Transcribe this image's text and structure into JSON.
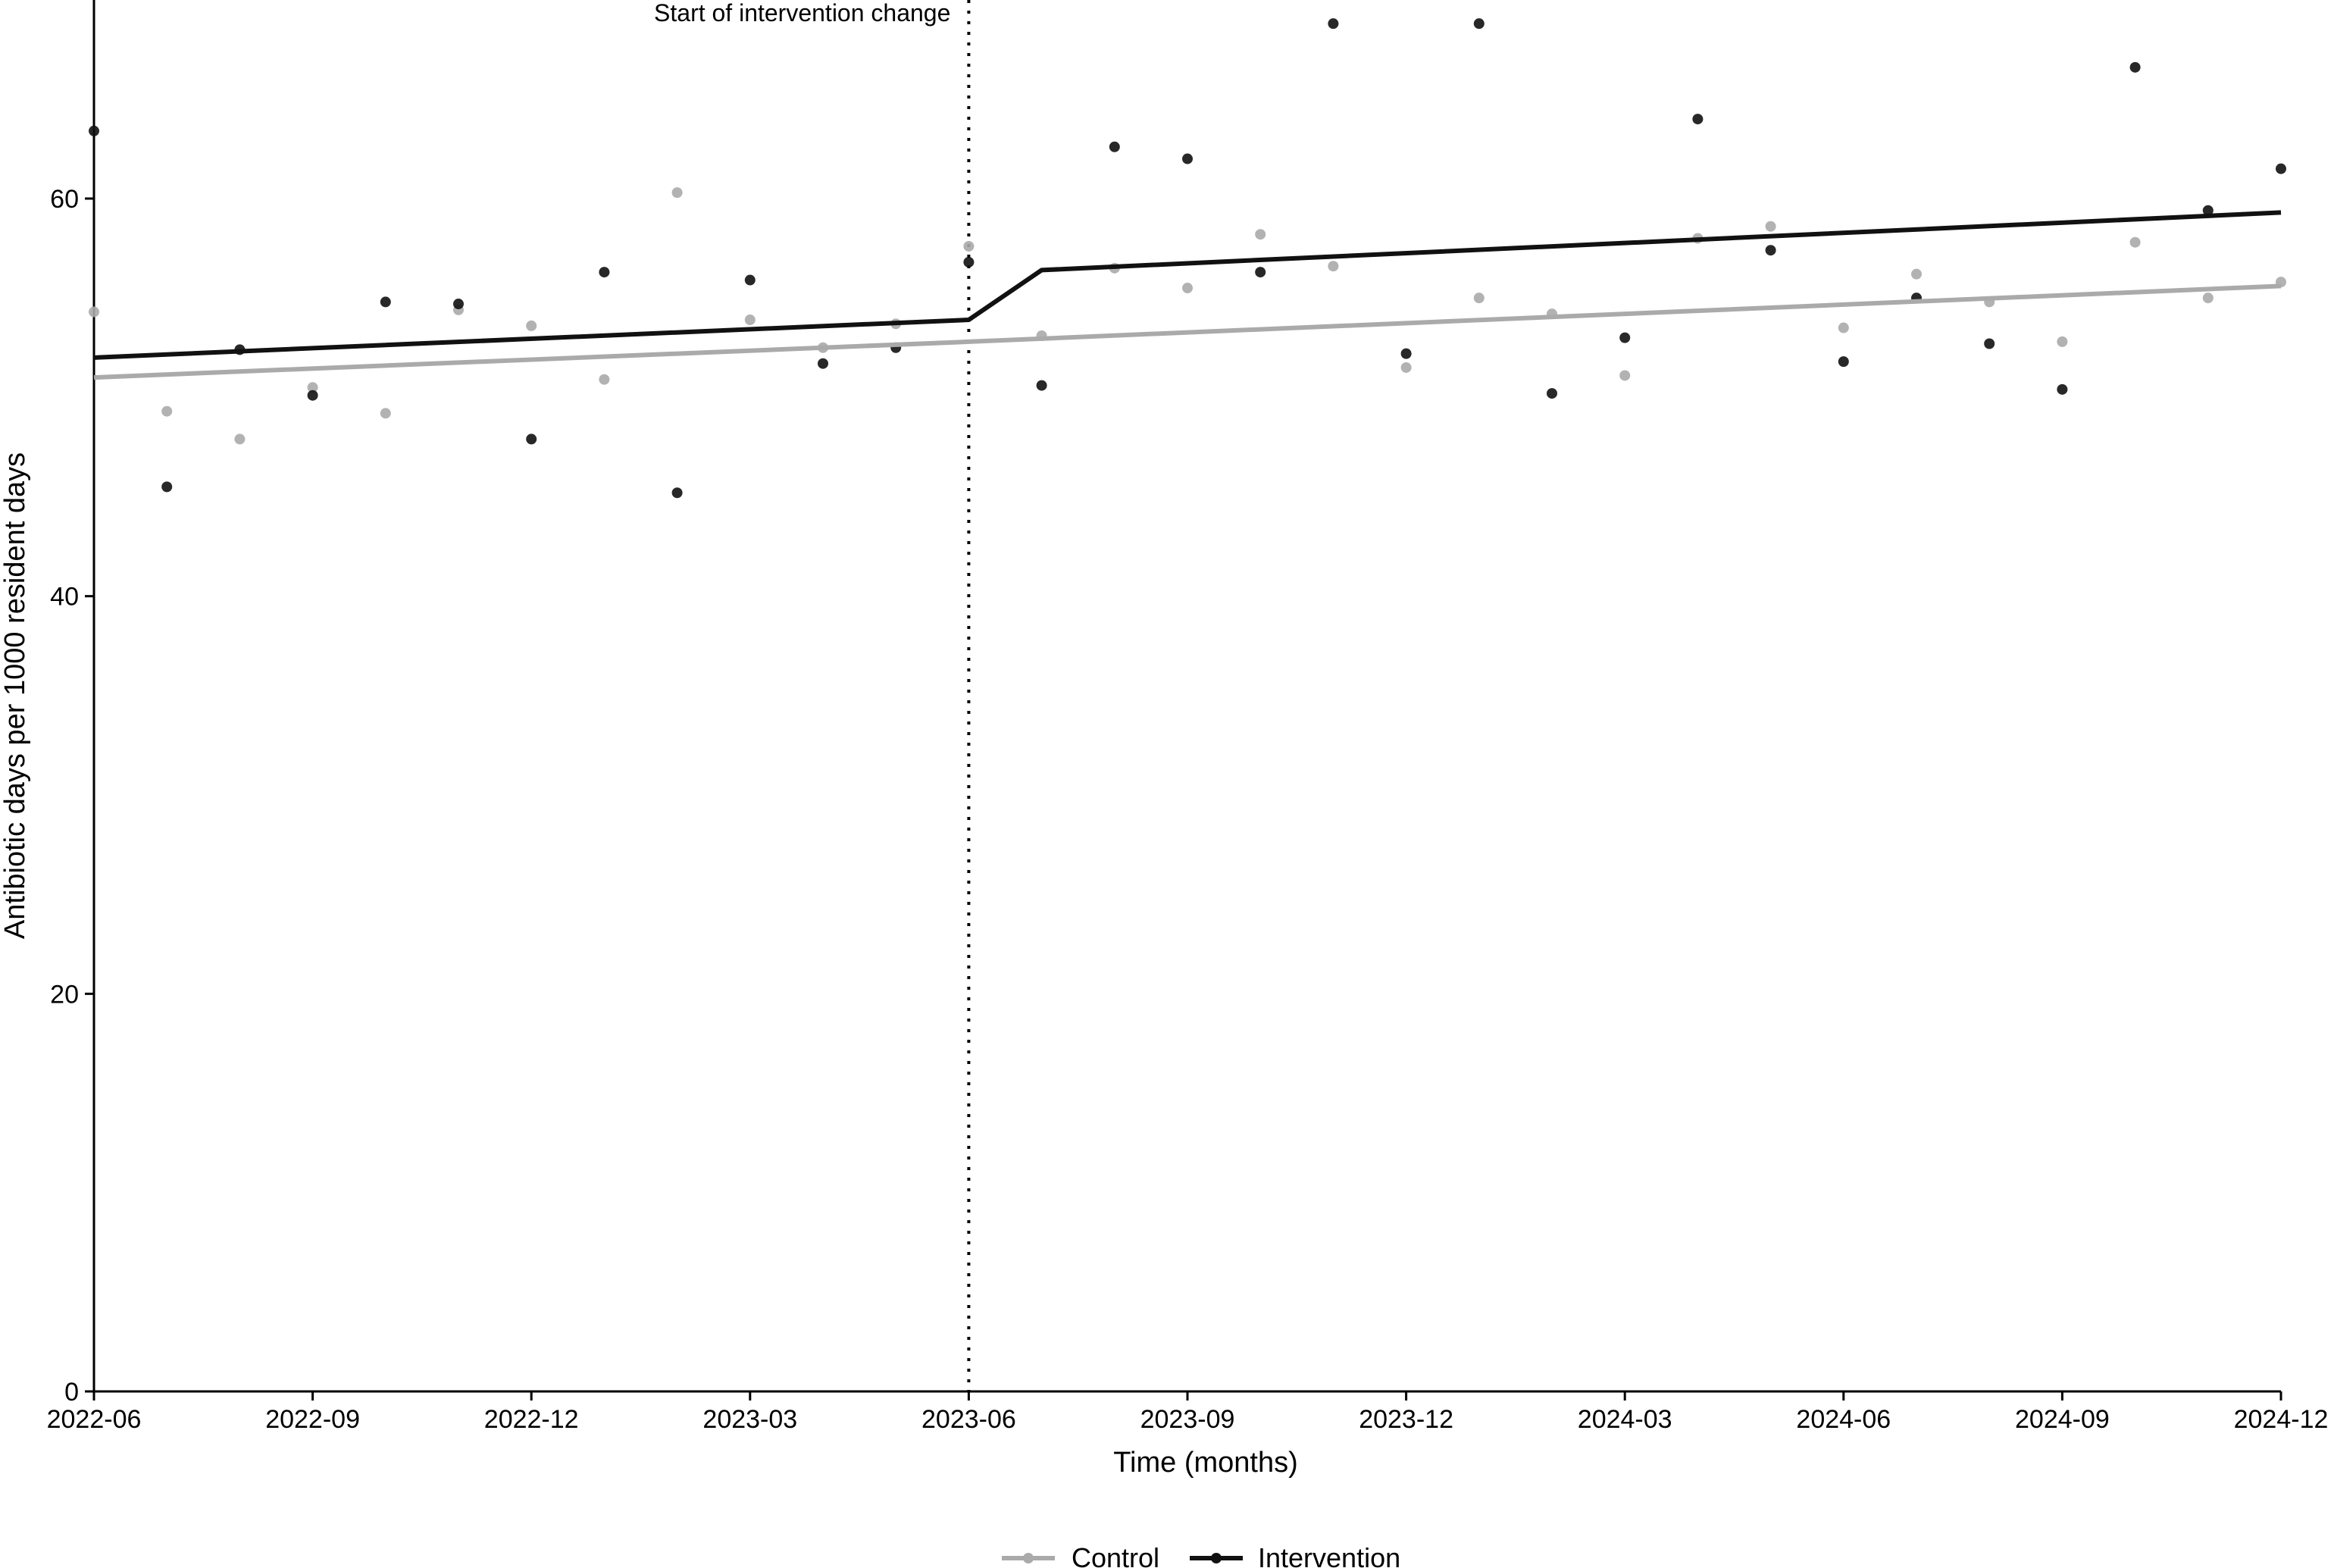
{
  "chart_data": {
    "type": "scatter",
    "title": "",
    "xlabel": "Time (months)",
    "ylabel": "Antibiotic days per 1000 resident days",
    "ylim": [
      0,
      60
    ],
    "y_ticks": [
      0,
      20,
      40,
      60
    ],
    "x_categories": [
      "2022-06",
      "2022-07",
      "2022-08",
      "2022-09",
      "2022-10",
      "2022-11",
      "2022-12",
      "2023-01",
      "2023-02",
      "2023-03",
      "2023-04",
      "2023-05",
      "2023-06",
      "2023-07",
      "2023-08",
      "2023-09",
      "2023-10",
      "2023-11",
      "2023-12",
      "2024-01",
      "2024-02",
      "2024-03",
      "2024-04",
      "2024-05",
      "2024-06",
      "2024-07",
      "2024-08",
      "2024-09",
      "2024-10",
      "2024-11",
      "2024-12"
    ],
    "x_tick_labels": [
      "2022-06",
      "2022-09",
      "2022-12",
      "2023-03",
      "2023-06",
      "2023-09",
      "2023-12",
      "2024-03",
      "2024-06",
      "2024-09",
      "2024-12"
    ],
    "grid": false,
    "legend_position": "bottom",
    "annotation": {
      "text": "Start of intervention change",
      "x": "2023-06"
    },
    "series": [
      {
        "name": "Control",
        "color": "#aaaaaa",
        "points": [
          54.3,
          49.3,
          47.9,
          50.5,
          49.2,
          54.4,
          53.6,
          50.9,
          60.3,
          53.9,
          52.5,
          53.7,
          57.6,
          53.1,
          56.5,
          55.5,
          58.2,
          56.6,
          51.5,
          55.0,
          54.2,
          51.1,
          58.0,
          58.6,
          53.5,
          56.2,
          54.8,
          52.8,
          57.8,
          55.0,
          55.8
        ],
        "fit": [
          [
            0,
            51.0
          ],
          [
            12,
            52.8
          ],
          [
            30,
            55.6
          ]
        ]
      },
      {
        "name": "Intervention",
        "color": "#111111",
        "points": [
          63.4,
          45.5,
          52.4,
          50.1,
          54.8,
          54.7,
          47.9,
          56.3,
          45.2,
          55.9,
          51.7,
          52.5,
          56.8,
          50.6,
          62.6,
          62.0,
          56.3,
          68.8,
          52.2,
          68.8,
          50.2,
          53.0,
          64.0,
          57.4,
          51.8,
          55.0,
          52.7,
          50.4,
          66.6,
          59.4,
          61.5
        ],
        "fit": [
          [
            0,
            52.0
          ],
          [
            12,
            53.9
          ],
          [
            13,
            56.4
          ],
          [
            30,
            59.3
          ]
        ]
      }
    ]
  }
}
